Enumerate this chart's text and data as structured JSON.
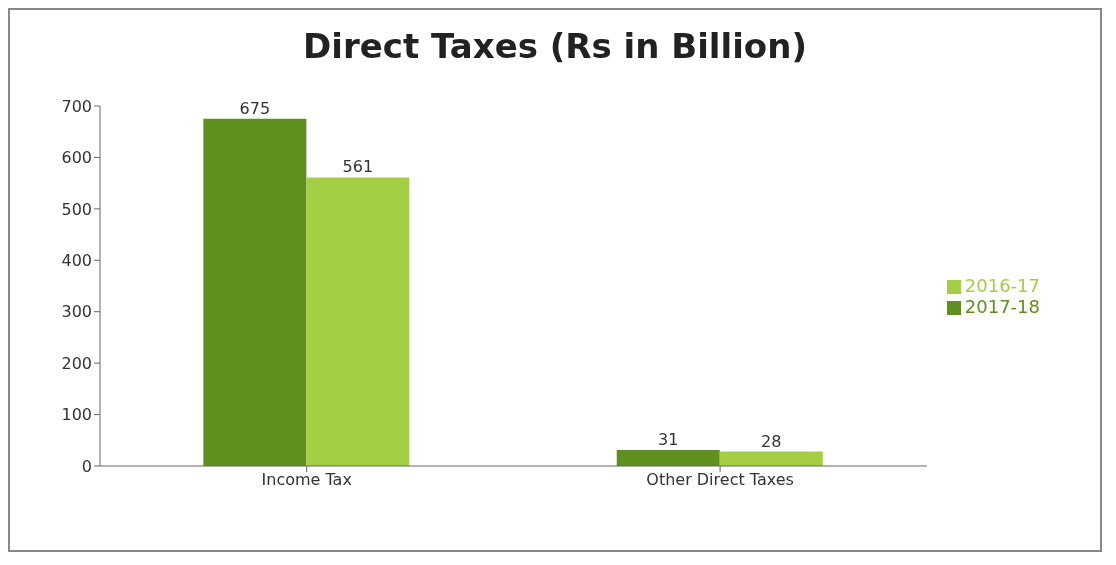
{
  "chart_data": {
    "type": "bar",
    "title": "Direct Taxes (Rs in Billion)",
    "categories": [
      "Income Tax",
      "Other Direct Taxes"
    ],
    "series": [
      {
        "name": "2017-18",
        "color": "#5f8f1e",
        "values": [
          675,
          31
        ]
      },
      {
        "name": "2016-17",
        "color": "#a4cf45",
        "values": [
          561,
          28
        ]
      }
    ],
    "ylim": [
      0,
      700
    ],
    "yticks": [
      0,
      100,
      200,
      300,
      400,
      500,
      600,
      700
    ],
    "grid": false,
    "legend": "right",
    "data_labels": true
  }
}
